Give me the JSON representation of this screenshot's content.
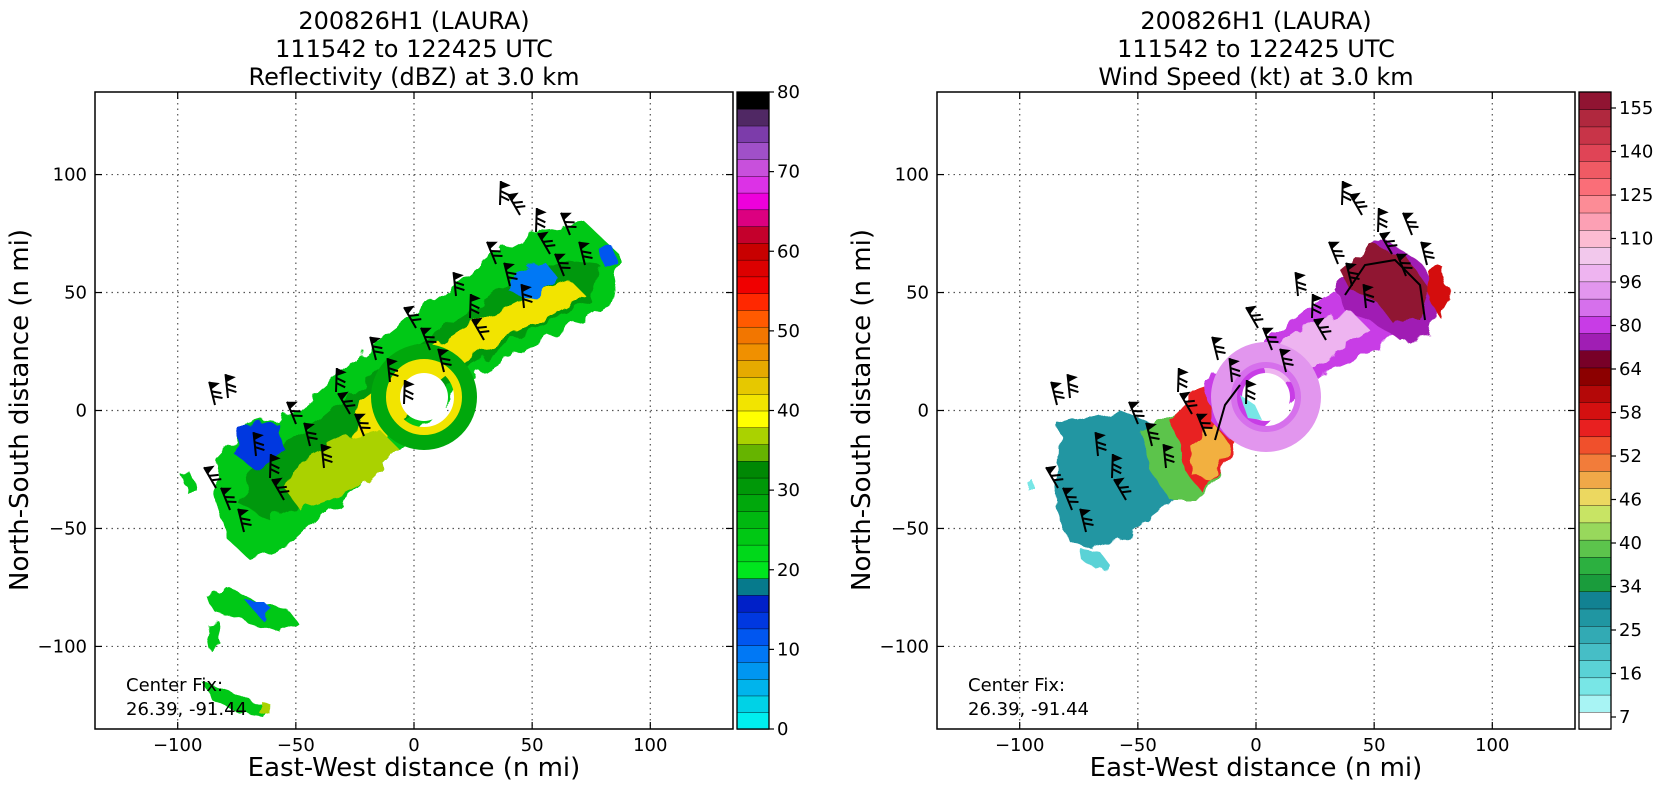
{
  "chart_data": [
    {
      "type": "heatmap",
      "title": [
        "200826H1 (LAURA)",
        "111542 to 122425 UTC",
        "Reflectivity (dBZ) at 3.0 km"
      ],
      "xlabel": "East-West distance (n mi)",
      "ylabel": "North-South distance (n mi)",
      "xlim": [
        -135,
        135
      ],
      "ylim": [
        -135,
        135
      ],
      "xticks": [
        -100,
        -50,
        0,
        50,
        100
      ],
      "yticks": [
        -100,
        -50,
        0,
        50,
        100
      ],
      "grid": true,
      "annotation": [
        "Center Fix:",
        "26.39, -91.44"
      ],
      "colorbar": {
        "min": 0,
        "max": 80,
        "tick_labels": [
          "0",
          "10",
          "20",
          "30",
          "40",
          "50",
          "60",
          "70",
          "80"
        ],
        "colors": [
          "#00eeee",
          "#00d2e6",
          "#00b4ec",
          "#0096f0",
          "#0078f5",
          "#0056f0",
          "#0038e0",
          "#0020c8",
          "#067a8c",
          "#00e61e",
          "#00d81a",
          "#00c814",
          "#00b810",
          "#00a80c",
          "#009808",
          "#008804",
          "#66b400",
          "#aad200",
          "#ffff00",
          "#f2e400",
          "#e6c800",
          "#e6aa00",
          "#f09000",
          "#f27600",
          "#ff5a00",
          "#ff2800",
          "#f00000",
          "#dc0000",
          "#c80000",
          "#c4002c",
          "#dc0080",
          "#ee00dc",
          "#dc32e6",
          "#c850dc",
          "#a050c8",
          "#7c3caa",
          "#502864",
          "#000000"
        ]
      },
      "field": {
        "description_free": true,
        "dominant_range_dbz": [
          20,
          40
        ],
        "eye_center": [
          5,
          3
        ],
        "band_orientation_deg": 35
      }
    },
    {
      "type": "heatmap",
      "title": [
        "200826H1 (LAURA)",
        "111542 to 122425 UTC",
        "Wind Speed (kt) at 3.0 km"
      ],
      "xlabel": "East-West distance (n mi)",
      "ylabel": "North-South distance (n mi)",
      "xlim": [
        -135,
        135
      ],
      "ylim": [
        -135,
        135
      ],
      "xticks": [
        -100,
        -50,
        0,
        50,
        100
      ],
      "yticks": [
        -100,
        -50,
        0,
        50,
        100
      ],
      "grid": true,
      "annotation": [
        "Center Fix:",
        "26.39, -91.44"
      ],
      "colorbar": {
        "min": 0,
        "max": 160,
        "tick_labels": [
          "7",
          "16",
          "25",
          "34",
          "40",
          "46",
          "52",
          "58",
          "64",
          "80",
          "96",
          "110",
          "125",
          "140",
          "155"
        ],
        "colors": [
          "#ffffff",
          "#a8f4f4",
          "#78e6e6",
          "#5ad2d6",
          "#46bec6",
          "#32aab4",
          "#2096a2",
          "#128292",
          "#1a9c3c",
          "#2cb040",
          "#5cc44c",
          "#98d85c",
          "#c8e464",
          "#ecd860",
          "#f0a848",
          "#f27c3a",
          "#f0502c",
          "#e82020",
          "#d41010",
          "#b40808",
          "#8c0000",
          "#780028",
          "#a01eb4",
          "#c83ce6",
          "#d670ec",
          "#e296ee",
          "#eeb4f0",
          "#f2c8ec",
          "#fcbcd2",
          "#fca0b4",
          "#fc8c96",
          "#fa6e78",
          "#f05a64",
          "#e04456",
          "#c83448",
          "#b0283e",
          "#901432"
        ]
      },
      "field": {
        "dominant_range_kt": [
          34,
          155
        ],
        "eye_center": [
          5,
          3
        ],
        "band_orientation_deg": 35
      }
    }
  ]
}
